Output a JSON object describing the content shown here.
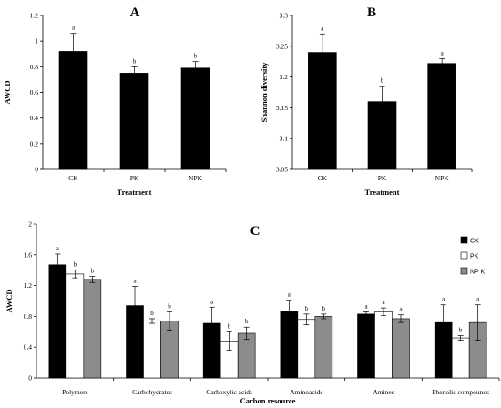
{
  "chart_data": [
    {
      "type": "bar",
      "panel": "A",
      "xlabel": "Treatment",
      "ylabel": "AWCD",
      "ylim": [
        0,
        1.2
      ],
      "yticks": [
        "0",
        "0.2",
        "0.4",
        "0.6",
        "0.8",
        "1",
        "1.2"
      ],
      "categories": [
        "CK",
        "PK",
        "NPK"
      ],
      "values": [
        0.92,
        0.75,
        0.79
      ],
      "errors": [
        0.14,
        0.05,
        0.05
      ],
      "letters": [
        "a",
        "b",
        "b"
      ],
      "color": "#000000"
    },
    {
      "type": "bar",
      "panel": "B",
      "xlabel": "Treatment",
      "ylabel": "Shannon diversity",
      "ylim": [
        3.05,
        3.3
      ],
      "yticks": [
        "3.05",
        "3.1",
        "3.15",
        "3.2",
        "3.25",
        "3.3"
      ],
      "categories": [
        "CK",
        "PK",
        "NPK"
      ],
      "values": [
        3.24,
        3.16,
        3.222
      ],
      "errors": [
        0.03,
        0.025,
        0.008
      ],
      "letters": [
        "a",
        "b",
        "a"
      ],
      "color": "#000000"
    },
    {
      "type": "bar",
      "panel": "C",
      "xlabel": "Carbon resource",
      "ylabel": "AWCD",
      "ylim": [
        0,
        2
      ],
      "yticks": [
        "0",
        "0.4",
        "0.8",
        "1.2",
        "1.6",
        "2"
      ],
      "categories": [
        "Polymers",
        "Carbohydrates",
        "Carboxylic acids",
        "Aminoacids",
        "Amines",
        "Phenolic compounds"
      ],
      "legend_position": "top-right",
      "series": [
        {
          "name": "CK",
          "color": "#000000",
          "values": [
            1.47,
            0.94,
            0.71,
            0.86,
            0.83,
            0.72
          ],
          "errors": [
            0.14,
            0.25,
            0.21,
            0.15,
            0.03,
            0.23
          ],
          "letters": [
            "a",
            "a",
            "a",
            "a",
            "a",
            "a"
          ]
        },
        {
          "name": "PK",
          "color": "#ffffff",
          "values": [
            1.35,
            0.74,
            0.48,
            0.76,
            0.86,
            0.52
          ],
          "errors": [
            0.05,
            0.03,
            0.12,
            0.07,
            0.05,
            0.03
          ],
          "letters": [
            "b",
            "b",
            "b",
            "b",
            "a",
            "b"
          ]
        },
        {
          "name": "NP K",
          "color": "#8c8c8c",
          "values": [
            1.28,
            0.74,
            0.58,
            0.8,
            0.77,
            0.72
          ],
          "errors": [
            0.04,
            0.12,
            0.08,
            0.03,
            0.05,
            0.23
          ],
          "letters": [
            "b",
            "b",
            "b",
            "b",
            "a",
            "a"
          ]
        }
      ]
    }
  ]
}
